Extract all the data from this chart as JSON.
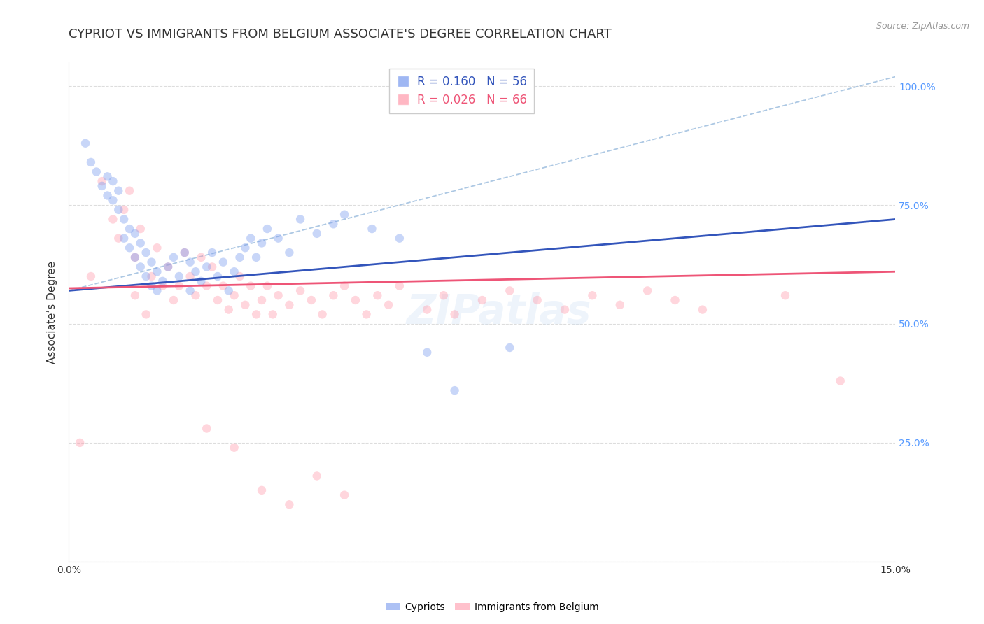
{
  "title": "CYPRIOT VS IMMIGRANTS FROM BELGIUM ASSOCIATE'S DEGREE CORRELATION CHART",
  "source_text": "Source: ZipAtlas.com",
  "ylabel": "Associate’s Degree",
  "xlim": [
    0.0,
    0.15
  ],
  "ylim": [
    0.0,
    1.05
  ],
  "xtick_positions": [
    0.0,
    0.03,
    0.06,
    0.09,
    0.12,
    0.15
  ],
  "xtick_labels": [
    "0.0%",
    "",
    "",
    "",
    "",
    "15.0%"
  ],
  "yticks": [
    0.0,
    0.25,
    0.5,
    0.75,
    1.0
  ],
  "ytick_labels_right": [
    "",
    "25.0%",
    "50.0%",
    "75.0%",
    "100.0%"
  ],
  "right_axis_color": "#5599ff",
  "cypriot_color": "#7799ee",
  "belgium_color": "#ff99aa",
  "cypriot_line_color": "#3355bb",
  "belgium_line_color": "#ee5577",
  "dash_line_color": "#99bbdd",
  "cypriot_R": 0.16,
  "cypriot_N": 56,
  "belgium_R": 0.026,
  "belgium_N": 66,
  "cypriot_scatter_x": [
    0.003,
    0.004,
    0.005,
    0.006,
    0.007,
    0.007,
    0.008,
    0.008,
    0.009,
    0.009,
    0.01,
    0.01,
    0.011,
    0.011,
    0.012,
    0.012,
    0.013,
    0.013,
    0.014,
    0.014,
    0.015,
    0.015,
    0.016,
    0.016,
    0.017,
    0.018,
    0.019,
    0.02,
    0.021,
    0.022,
    0.022,
    0.023,
    0.024,
    0.025,
    0.026,
    0.027,
    0.028,
    0.029,
    0.03,
    0.031,
    0.032,
    0.033,
    0.034,
    0.035,
    0.036,
    0.038,
    0.04,
    0.042,
    0.045,
    0.048,
    0.05,
    0.055,
    0.06,
    0.065,
    0.07,
    0.08
  ],
  "cypriot_scatter_y": [
    0.88,
    0.84,
    0.82,
    0.79,
    0.81,
    0.77,
    0.8,
    0.76,
    0.78,
    0.74,
    0.72,
    0.68,
    0.7,
    0.66,
    0.69,
    0.64,
    0.67,
    0.62,
    0.65,
    0.6,
    0.63,
    0.58,
    0.61,
    0.57,
    0.59,
    0.62,
    0.64,
    0.6,
    0.65,
    0.63,
    0.57,
    0.61,
    0.59,
    0.62,
    0.65,
    0.6,
    0.63,
    0.57,
    0.61,
    0.64,
    0.66,
    0.68,
    0.64,
    0.67,
    0.7,
    0.68,
    0.65,
    0.72,
    0.69,
    0.71,
    0.73,
    0.7,
    0.68,
    0.44,
    0.36,
    0.45
  ],
  "belgium_scatter_x": [
    0.002,
    0.004,
    0.006,
    0.008,
    0.009,
    0.01,
    0.011,
    0.012,
    0.012,
    0.013,
    0.014,
    0.015,
    0.016,
    0.017,
    0.018,
    0.019,
    0.02,
    0.021,
    0.022,
    0.023,
    0.024,
    0.025,
    0.026,
    0.027,
    0.028,
    0.029,
    0.03,
    0.031,
    0.032,
    0.033,
    0.034,
    0.035,
    0.036,
    0.037,
    0.038,
    0.04,
    0.042,
    0.044,
    0.046,
    0.048,
    0.05,
    0.052,
    0.054,
    0.056,
    0.058,
    0.06,
    0.065,
    0.068,
    0.07,
    0.075,
    0.08,
    0.085,
    0.09,
    0.095,
    0.1,
    0.105,
    0.11,
    0.115,
    0.13,
    0.14,
    0.025,
    0.03,
    0.035,
    0.04,
    0.045,
    0.05
  ],
  "belgium_scatter_y": [
    0.25,
    0.6,
    0.8,
    0.72,
    0.68,
    0.74,
    0.78,
    0.56,
    0.64,
    0.7,
    0.52,
    0.6,
    0.66,
    0.58,
    0.62,
    0.55,
    0.58,
    0.65,
    0.6,
    0.56,
    0.64,
    0.58,
    0.62,
    0.55,
    0.58,
    0.53,
    0.56,
    0.6,
    0.54,
    0.58,
    0.52,
    0.55,
    0.58,
    0.52,
    0.56,
    0.54,
    0.57,
    0.55,
    0.52,
    0.56,
    0.58,
    0.55,
    0.52,
    0.56,
    0.54,
    0.58,
    0.53,
    0.56,
    0.52,
    0.55,
    0.57,
    0.55,
    0.53,
    0.56,
    0.54,
    0.57,
    0.55,
    0.53,
    0.56,
    0.38,
    0.28,
    0.24,
    0.15,
    0.12,
    0.18,
    0.14
  ],
  "cypriot_line_x": [
    0.0,
    0.15
  ],
  "cypriot_line_y": [
    0.57,
    0.72
  ],
  "belgium_line_x": [
    0.0,
    0.15
  ],
  "belgium_line_y": [
    0.575,
    0.61
  ],
  "dash_line_x": [
    0.0,
    0.15
  ],
  "dash_line_y": [
    0.57,
    1.02
  ],
  "watermark_text": "ZIPatlas",
  "bg_color": "#ffffff",
  "grid_color": "#dddddd",
  "title_fontsize": 13,
  "axis_label_fontsize": 11,
  "tick_fontsize": 10,
  "scatter_size": 80,
  "scatter_alpha": 0.4,
  "line_width": 2.0
}
